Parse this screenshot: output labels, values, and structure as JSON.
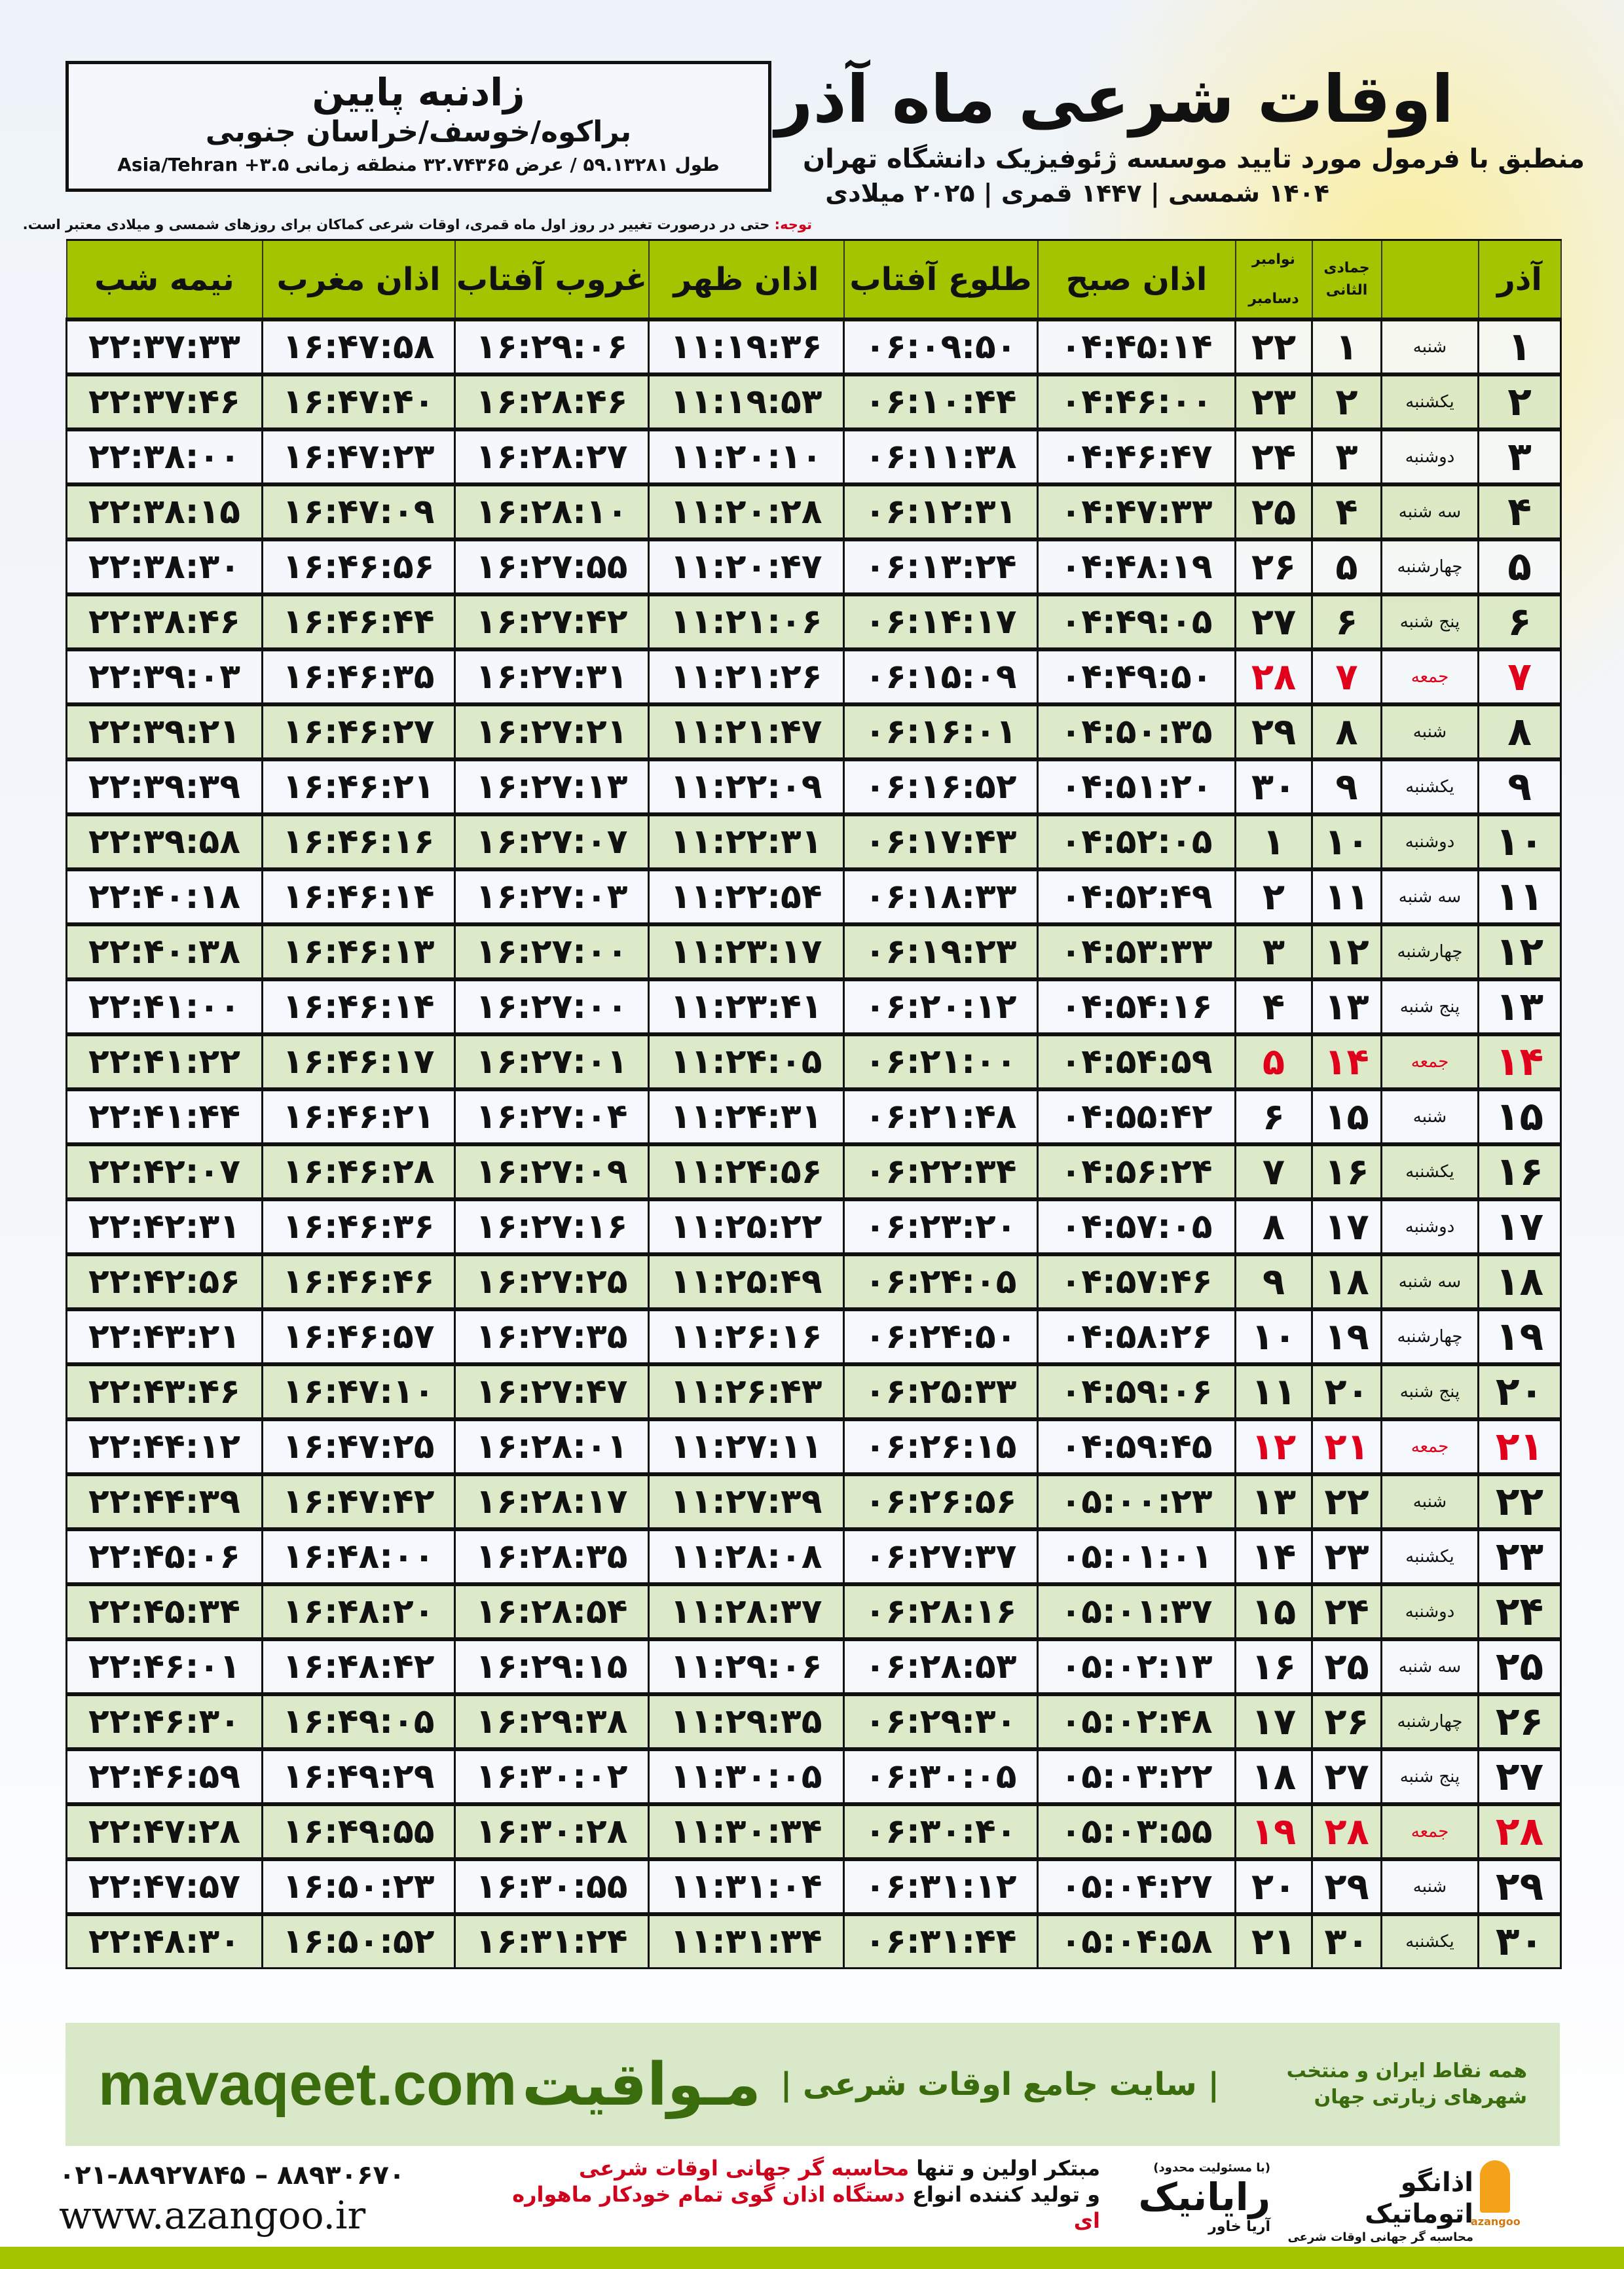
{
  "header": {
    "title": "اوقات شرعی ماه آذر",
    "subtitle": "منطبق با فرمول مورد تایید موسسه ژئوفیزیک دانشگاه تهران",
    "dates": "۱۴۰۴ شمسی | ۱۴۴۷ قمری | ۲۰۲۵ میلادی"
  },
  "location": {
    "city": "زادنبه پایین",
    "region": "براکوه/خوسف/خراسان جنوبی",
    "coords": "طول ۵۹.۱۳۲۸۱ / عرض ۳۲.۷۴۳۶۵ منطقه زمانی ۳.۵+ Asia/Tehran"
  },
  "note": {
    "label": "توجه:",
    "text": " حتی در درصورت تغییر در روز اول ماه قمری، اوقات شرعی کماکان برای روزهای شمسی و میلادی معتبر است."
  },
  "table": {
    "headers": {
      "day": "آذر",
      "weekday": "",
      "qamari": "جمادی الثانی",
      "gregorian_top": "نوامبر",
      "gregorian_bottom": "دسامبر",
      "sobh": "اذان صبح",
      "tolu": "طلوع آفتاب",
      "zohr": "اذان ظهر",
      "ghorub": "غروب آفتاب",
      "maghrib": "اذان مغرب",
      "nimeshab": "نیمه شب"
    },
    "rows": [
      [
        "۱",
        "شنبه",
        "۱",
        "۲۲",
        "۰۴:۴۵:۱۴",
        "۰۶:۰۹:۵۰",
        "۱۱:۱۹:۳۶",
        "۱۶:۲۹:۰۶",
        "۱۶:۴۷:۵۸",
        "۲۲:۳۷:۳۳"
      ],
      [
        "۲",
        "یکشنبه",
        "۲",
        "۲۳",
        "۰۴:۴۶:۰۰",
        "۰۶:۱۰:۴۴",
        "۱۱:۱۹:۵۳",
        "۱۶:۲۸:۴۶",
        "۱۶:۴۷:۴۰",
        "۲۲:۳۷:۴۶"
      ],
      [
        "۳",
        "دوشنبه",
        "۳",
        "۲۴",
        "۰۴:۴۶:۴۷",
        "۰۶:۱۱:۳۸",
        "۱۱:۲۰:۱۰",
        "۱۶:۲۸:۲۷",
        "۱۶:۴۷:۲۳",
        "۲۲:۳۸:۰۰"
      ],
      [
        "۴",
        "سه شنبه",
        "۴",
        "۲۵",
        "۰۴:۴۷:۳۳",
        "۰۶:۱۲:۳۱",
        "۱۱:۲۰:۲۸",
        "۱۶:۲۸:۱۰",
        "۱۶:۴۷:۰۹",
        "۲۲:۳۸:۱۵"
      ],
      [
        "۵",
        "چهارشنبه",
        "۵",
        "۲۶",
        "۰۴:۴۸:۱۹",
        "۰۶:۱۳:۲۴",
        "۱۱:۲۰:۴۷",
        "۱۶:۲۷:۵۵",
        "۱۶:۴۶:۵۶",
        "۲۲:۳۸:۳۰"
      ],
      [
        "۶",
        "پنج شنبه",
        "۶",
        "۲۷",
        "۰۴:۴۹:۰۵",
        "۰۶:۱۴:۱۷",
        "۱۱:۲۱:۰۶",
        "۱۶:۲۷:۴۲",
        "۱۶:۴۶:۴۴",
        "۲۲:۳۸:۴۶"
      ],
      [
        "۷",
        "جمعه",
        "۷",
        "۲۸",
        "۰۴:۴۹:۵۰",
        "۰۶:۱۵:۰۹",
        "۱۱:۲۱:۲۶",
        "۱۶:۲۷:۳۱",
        "۱۶:۴۶:۳۵",
        "۲۲:۳۹:۰۳"
      ],
      [
        "۸",
        "شنبه",
        "۸",
        "۲۹",
        "۰۴:۵۰:۳۵",
        "۰۶:۱۶:۰۱",
        "۱۱:۲۱:۴۷",
        "۱۶:۲۷:۲۱",
        "۱۶:۴۶:۲۷",
        "۲۲:۳۹:۲۱"
      ],
      [
        "۹",
        "یکشنبه",
        "۹",
        "۳۰",
        "۰۴:۵۱:۲۰",
        "۰۶:۱۶:۵۲",
        "۱۱:۲۲:۰۹",
        "۱۶:۲۷:۱۳",
        "۱۶:۴۶:۲۱",
        "۲۲:۳۹:۳۹"
      ],
      [
        "۱۰",
        "دوشنبه",
        "۱۰",
        "۱",
        "۰۴:۵۲:۰۵",
        "۰۶:۱۷:۴۳",
        "۱۱:۲۲:۳۱",
        "۱۶:۲۷:۰۷",
        "۱۶:۴۶:۱۶",
        "۲۲:۳۹:۵۸"
      ],
      [
        "۱۱",
        "سه شنبه",
        "۱۱",
        "۲",
        "۰۴:۵۲:۴۹",
        "۰۶:۱۸:۳۳",
        "۱۱:۲۲:۵۴",
        "۱۶:۲۷:۰۳",
        "۱۶:۴۶:۱۴",
        "۲۲:۴۰:۱۸"
      ],
      [
        "۱۲",
        "چهارشنبه",
        "۱۲",
        "۳",
        "۰۴:۵۳:۳۳",
        "۰۶:۱۹:۲۳",
        "۱۱:۲۳:۱۷",
        "۱۶:۲۷:۰۰",
        "۱۶:۴۶:۱۳",
        "۲۲:۴۰:۳۸"
      ],
      [
        "۱۳",
        "پنج شنبه",
        "۱۳",
        "۴",
        "۰۴:۵۴:۱۶",
        "۰۶:۲۰:۱۲",
        "۱۱:۲۳:۴۱",
        "۱۶:۲۷:۰۰",
        "۱۶:۴۶:۱۴",
        "۲۲:۴۱:۰۰"
      ],
      [
        "۱۴",
        "جمعه",
        "۱۴",
        "۵",
        "۰۴:۵۴:۵۹",
        "۰۶:۲۱:۰۰",
        "۱۱:۲۴:۰۵",
        "۱۶:۲۷:۰۱",
        "۱۶:۴۶:۱۷",
        "۲۲:۴۱:۲۲"
      ],
      [
        "۱۵",
        "شنبه",
        "۱۵",
        "۶",
        "۰۴:۵۵:۴۲",
        "۰۶:۲۱:۴۸",
        "۱۱:۲۴:۳۱",
        "۱۶:۲۷:۰۴",
        "۱۶:۴۶:۲۱",
        "۲۲:۴۱:۴۴"
      ],
      [
        "۱۶",
        "یکشنبه",
        "۱۶",
        "۷",
        "۰۴:۵۶:۲۴",
        "۰۶:۲۲:۳۴",
        "۱۱:۲۴:۵۶",
        "۱۶:۲۷:۰۹",
        "۱۶:۴۶:۲۸",
        "۲۲:۴۲:۰۷"
      ],
      [
        "۱۷",
        "دوشنبه",
        "۱۷",
        "۸",
        "۰۴:۵۷:۰۵",
        "۰۶:۲۳:۲۰",
        "۱۱:۲۵:۲۲",
        "۱۶:۲۷:۱۶",
        "۱۶:۴۶:۳۶",
        "۲۲:۴۲:۳۱"
      ],
      [
        "۱۸",
        "سه شنبه",
        "۱۸",
        "۹",
        "۰۴:۵۷:۴۶",
        "۰۶:۲۴:۰۵",
        "۱۱:۲۵:۴۹",
        "۱۶:۲۷:۲۵",
        "۱۶:۴۶:۴۶",
        "۲۲:۴۲:۵۶"
      ],
      [
        "۱۹",
        "چهارشنبه",
        "۱۹",
        "۱۰",
        "۰۴:۵۸:۲۶",
        "۰۶:۲۴:۵۰",
        "۱۱:۲۶:۱۶",
        "۱۶:۲۷:۳۵",
        "۱۶:۴۶:۵۷",
        "۲۲:۴۳:۲۱"
      ],
      [
        "۲۰",
        "پنج شنبه",
        "۲۰",
        "۱۱",
        "۰۴:۵۹:۰۶",
        "۰۶:۲۵:۳۳",
        "۱۱:۲۶:۴۳",
        "۱۶:۲۷:۴۷",
        "۱۶:۴۷:۱۰",
        "۲۲:۴۳:۴۶"
      ],
      [
        "۲۱",
        "جمعه",
        "۲۱",
        "۱۲",
        "۰۴:۵۹:۴۵",
        "۰۶:۲۶:۱۵",
        "۱۱:۲۷:۱۱",
        "۱۶:۲۸:۰۱",
        "۱۶:۴۷:۲۵",
        "۲۲:۴۴:۱۲"
      ],
      [
        "۲۲",
        "شنبه",
        "۲۲",
        "۱۳",
        "۰۵:۰۰:۲۳",
        "۰۶:۲۶:۵۶",
        "۱۱:۲۷:۳۹",
        "۱۶:۲۸:۱۷",
        "۱۶:۴۷:۴۲",
        "۲۲:۴۴:۳۹"
      ],
      [
        "۲۳",
        "یکشنبه",
        "۲۳",
        "۱۴",
        "۰۵:۰۱:۰۱",
        "۰۶:۲۷:۳۷",
        "۱۱:۲۸:۰۸",
        "۱۶:۲۸:۳۵",
        "۱۶:۴۸:۰۰",
        "۲۲:۴۵:۰۶"
      ],
      [
        "۲۴",
        "دوشنبه",
        "۲۴",
        "۱۵",
        "۰۵:۰۱:۳۷",
        "۰۶:۲۸:۱۶",
        "۱۱:۲۸:۳۷",
        "۱۶:۲۸:۵۴",
        "۱۶:۴۸:۲۰",
        "۲۲:۴۵:۳۴"
      ],
      [
        "۲۵",
        "سه شنبه",
        "۲۵",
        "۱۶",
        "۰۵:۰۲:۱۳",
        "۰۶:۲۸:۵۳",
        "۱۱:۲۹:۰۶",
        "۱۶:۲۹:۱۵",
        "۱۶:۴۸:۴۲",
        "۲۲:۴۶:۰۱"
      ],
      [
        "۲۶",
        "چهارشنبه",
        "۲۶",
        "۱۷",
        "۰۵:۰۲:۴۸",
        "۰۶:۲۹:۳۰",
        "۱۱:۲۹:۳۵",
        "۱۶:۲۹:۳۸",
        "۱۶:۴۹:۰۵",
        "۲۲:۴۶:۳۰"
      ],
      [
        "۲۷",
        "پنج شنبه",
        "۲۷",
        "۱۸",
        "۰۵:۰۳:۲۲",
        "۰۶:۳۰:۰۵",
        "۱۱:۳۰:۰۵",
        "۱۶:۳۰:۰۲",
        "۱۶:۴۹:۲۹",
        "۲۲:۴۶:۵۹"
      ],
      [
        "۲۸",
        "جمعه",
        "۲۸",
        "۱۹",
        "۰۵:۰۳:۵۵",
        "۰۶:۳۰:۴۰",
        "۱۱:۳۰:۳۴",
        "۱۶:۳۰:۲۸",
        "۱۶:۴۹:۵۵",
        "۲۲:۴۷:۲۸"
      ],
      [
        "۲۹",
        "شنبه",
        "۲۹",
        "۲۰",
        "۰۵:۰۴:۲۷",
        "۰۶:۳۱:۱۲",
        "۱۱:۳۱:۰۴",
        "۱۶:۳۰:۵۵",
        "۱۶:۵۰:۲۳",
        "۲۲:۴۷:۵۷"
      ],
      [
        "۳۰",
        "یکشنبه",
        "۳۰",
        "۲۱",
        "۰۵:۰۴:۵۸",
        "۰۶:۳۱:۴۴",
        "۱۱:۳۱:۳۴",
        "۱۶:۳۱:۲۴",
        "۱۶:۵۰:۵۲",
        "۲۲:۴۸:۳۰"
      ]
    ],
    "friday_label": "جمعه",
    "friday_color": "#e0001b",
    "header_color": "#a4c400"
  },
  "banner": {
    "brand": "مـواقیت",
    "tagline": "| سایت جامع اوقات شرعی |",
    "tagline2": "همه نقاط ایران و منتخب شهرهای زیارتی جهان",
    "url": "mavaqeet.com",
    "color": "#3a6b0c"
  },
  "footer": {
    "phone": "۰۲۱-۸۸۹۲۷۸۴۵ – ۸۸۹۳۰۶۷۰",
    "site": "www.azangoo.ir",
    "promo_line1_a": "مبتکر اولین و تنها ",
    "promo_line1_b": "محاسبه گر جهانی اوقات شرعی",
    "promo_line2_a": "و تولید کننده انواع ",
    "promo_line2_b": "دستگاه اذان گوی تمام خودکار ماهواره ای",
    "rayanik_small": "(با مسئولیت محدود)",
    "rayanik": "رایانیک",
    "rayanik_sub": "آریا خاور",
    "azangoo_name": "اذانگو اتوماتیک",
    "azangoo_sub": "محاسبه گر جهانی اوقات شرعی",
    "azangoo_en": "azangoo"
  }
}
